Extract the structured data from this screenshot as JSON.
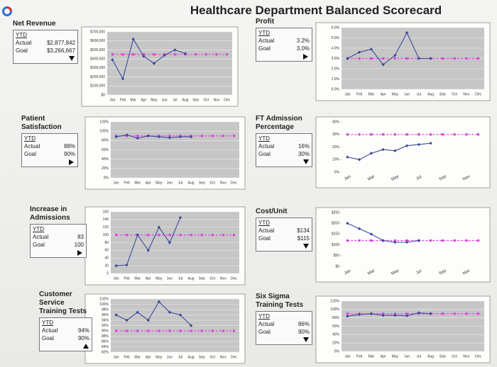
{
  "title": "Healthcare Department Balanced Scorecard",
  "chart_data": [
    {
      "type": "line",
      "title": "Net Revenue",
      "ytd": {
        "header": "YTD",
        "labels": [
          "Actual",
          "Goal"
        ],
        "values": [
          2877842,
          3266667
        ],
        "value_labels": [
          "$2,877,842",
          "$3,266,667"
        ]
      },
      "status": "down",
      "categories": [
        "Jan",
        "Feb",
        "Mar",
        "Apr",
        "May",
        "Jun",
        "Jul",
        "Aug",
        "Sep",
        "Oct",
        "Nov",
        "Dec"
      ],
      "series": [
        {
          "color": "#3a4a9a",
          "values": [
            390000,
            180000,
            620000,
            430000,
            350000,
            440000,
            500000,
            460000,
            null,
            null,
            null,
            null
          ]
        },
        {
          "color": "#e040e0",
          "values": [
            450000,
            450000,
            450000,
            450000,
            450000,
            450000,
            450000,
            450000,
            450000,
            450000,
            450000,
            450000
          ]
        }
      ],
      "ylim": [
        0,
        700000
      ],
      "yticks": [
        {
          "value": 0,
          "label": "$0"
        },
        {
          "value": 100000,
          "label": "$100,000"
        },
        {
          "value": 200000,
          "label": "$200,000"
        },
        {
          "value": 300000,
          "label": "$300,000"
        },
        {
          "value": 400000,
          "label": "$400,000"
        },
        {
          "value": 500000,
          "label": "$500,000"
        },
        {
          "value": 600000,
          "label": "$600,000"
        },
        {
          "value": 700000,
          "label": "$700,000"
        }
      ],
      "grid": true
    },
    {
      "type": "line",
      "title": "Profit",
      "ytd": {
        "header": "YTD",
        "labels": [
          "Actual",
          "Goal"
        ],
        "values": [
          3.2,
          3.0
        ],
        "value_labels": [
          "3.2%",
          "3.0%"
        ]
      },
      "status": "right",
      "categories": [
        "Jan",
        "Feb",
        "Mar",
        "Apr",
        "May",
        "Jun",
        "Jul",
        "Aug",
        "Sep",
        "Oct",
        "Nov",
        "Dec"
      ],
      "series": [
        {
          "color": "#3a4a9a",
          "values": [
            3.0,
            3.6,
            3.9,
            2.4,
            3.3,
            5.5,
            3.0,
            3.0,
            null,
            null,
            null,
            null
          ]
        },
        {
          "color": "#e040e0",
          "values": [
            3.0,
            3.0,
            3.0,
            3.0,
            3.0,
            3.0,
            3.0,
            3.0,
            3.0,
            3.0,
            3.0,
            3.0
          ]
        }
      ],
      "ylim": [
        0,
        6
      ],
      "yticks": [
        {
          "value": 0,
          "label": "0.0%"
        },
        {
          "value": 1,
          "label": "1.0%"
        },
        {
          "value": 2,
          "label": "2.0%"
        },
        {
          "value": 3,
          "label": "3.0%"
        },
        {
          "value": 4,
          "label": "4.0%"
        },
        {
          "value": 5,
          "label": "5.0%"
        },
        {
          "value": 6,
          "label": "6.0%"
        }
      ],
      "grid": true
    },
    {
      "type": "line",
      "title": "Patient Satisfaction",
      "ytd": {
        "header": "YTD",
        "labels": [
          "Actual",
          "Goal"
        ],
        "values": [
          88,
          90
        ],
        "value_labels": [
          "88%",
          "90%"
        ]
      },
      "status": "right",
      "categories": [
        "Jan",
        "Feb",
        "Mar",
        "Apr",
        "May",
        "Jun",
        "Jul",
        "Aug",
        "Sep",
        "Oct",
        "Nov",
        "Dec"
      ],
      "series": [
        {
          "color": "#3a4a9a",
          "values": [
            88,
            92,
            85,
            90,
            88,
            86,
            88,
            88,
            null,
            null,
            null,
            null
          ]
        },
        {
          "color": "#e040e0",
          "values": [
            90,
            90,
            90,
            90,
            90,
            90,
            90,
            90,
            90,
            90,
            90,
            90
          ]
        }
      ],
      "ylim": [
        0,
        120
      ],
      "yticks": [
        {
          "value": 0,
          "label": "0%"
        },
        {
          "value": 20,
          "label": "20%"
        },
        {
          "value": 40,
          "label": "40%"
        },
        {
          "value": 60,
          "label": "60%"
        },
        {
          "value": 80,
          "label": "80%"
        },
        {
          "value": 100,
          "label": "100%"
        },
        {
          "value": 120,
          "label": "120%"
        }
      ],
      "grid": true
    },
    {
      "type": "line",
      "title": "FT Admission Percentage",
      "ytd": {
        "header": "YTD",
        "labels": [
          "Actual",
          "Goal"
        ],
        "values": [
          16,
          30
        ],
        "value_labels": [
          "16%",
          "30%"
        ]
      },
      "status": "down",
      "categories": [
        "Jan",
        null,
        "Mar",
        null,
        "May",
        null,
        "Jul",
        null,
        "Sep",
        null,
        "Nov",
        null
      ],
      "series": [
        {
          "color": "#3a4a9a",
          "values": [
            12,
            10,
            15,
            18,
            17,
            21,
            22,
            23,
            null,
            null,
            null,
            null
          ]
        },
        {
          "color": "#e040e0",
          "values": [
            30,
            30,
            30,
            30,
            30,
            30,
            30,
            30,
            30,
            30,
            30,
            30
          ]
        }
      ],
      "ylim": [
        0,
        40
      ],
      "yticks": [
        {
          "value": 0,
          "label": "0%"
        },
        {
          "value": 10,
          "label": "10%"
        },
        {
          "value": 20,
          "label": "20%"
        },
        {
          "value": 30,
          "label": "30%"
        },
        {
          "value": 40,
          "label": "40%"
        }
      ],
      "grid": false
    },
    {
      "type": "line",
      "title": "Increase in Admissions",
      "ytd": {
        "header": "YTD",
        "labels": [
          "Actual",
          "Goal"
        ],
        "values": [
          83,
          100
        ]
      },
      "status": "right",
      "categories": [
        "Jan",
        "Feb",
        "Mar",
        "Apr",
        "May",
        "Jun",
        "Jul",
        "Aug",
        "Sep",
        "Oct",
        "Nov",
        "Dec"
      ],
      "series": [
        {
          "color": "#3a4a9a",
          "values": [
            20,
            22,
            100,
            60,
            120,
            80,
            145,
            null,
            null,
            null,
            null,
            null
          ]
        },
        {
          "color": "#e040e0",
          "values": [
            100,
            100,
            100,
            100,
            100,
            100,
            100,
            100,
            100,
            100,
            100,
            100
          ]
        }
      ],
      "ylim": [
        0,
        160
      ],
      "yticks": [
        0,
        20,
        40,
        60,
        80,
        100,
        120,
        140,
        160
      ],
      "grid": true
    },
    {
      "type": "line",
      "title": "Cost/Unit",
      "ytd": {
        "header": "YTD",
        "labels": [
          "Actual",
          "Goal"
        ],
        "values": [
          134,
          115
        ],
        "value_labels": [
          "$134",
          "$115"
        ]
      },
      "status": "down",
      "categories": [
        "Jan",
        null,
        "Mar",
        null,
        "May",
        null,
        "Jul",
        null,
        "Sep",
        null,
        "Nov",
        null
      ],
      "series": [
        {
          "color": "#3a4a9a",
          "values": [
            200,
            175,
            150,
            120,
            112,
            112,
            120,
            null,
            null,
            null,
            null,
            null
          ]
        },
        {
          "color": "#e040e0",
          "values": [
            120,
            120,
            120,
            120,
            120,
            120,
            120,
            120,
            120,
            120,
            120,
            120
          ]
        }
      ],
      "ylim": [
        0,
        250
      ],
      "yticks": [
        {
          "value": 0,
          "label": "$0"
        },
        {
          "value": 50,
          "label": "$50"
        },
        {
          "value": 100,
          "label": "$100"
        },
        {
          "value": 150,
          "label": "$150"
        },
        {
          "value": 200,
          "label": "$200"
        },
        {
          "value": 250,
          "label": "$250"
        }
      ],
      "grid": false
    },
    {
      "type": "line",
      "title": "Customer Service Training Tests",
      "ytd": {
        "header": "YTD",
        "labels": [
          "Actual",
          "Goal"
        ],
        "values": [
          94,
          90
        ],
        "value_labels": [
          "94%",
          "90%"
        ]
      },
      "status": "up",
      "categories": [
        "Jan",
        "Feb",
        "Mar",
        "Apr",
        "May",
        "Jun",
        "Jul",
        "Aug",
        "Sep",
        "Oct",
        "Nov",
        "Dec"
      ],
      "series": [
        {
          "color": "#3a4a9a",
          "values": [
            96,
            94,
            97,
            94,
            101,
            97,
            96,
            92,
            null,
            null,
            null,
            null
          ]
        },
        {
          "color": "#e040e0",
          "values": [
            90,
            90,
            90,
            90,
            90,
            90,
            90,
            90,
            90,
            90,
            90,
            90
          ]
        }
      ],
      "ylim": [
        82,
        102
      ],
      "yticks": [
        {
          "value": 82,
          "label": "82%"
        },
        {
          "value": 84,
          "label": "84%"
        },
        {
          "value": 86,
          "label": "86%"
        },
        {
          "value": 88,
          "label": "88%"
        },
        {
          "value": 90,
          "label": "90%"
        },
        {
          "value": 92,
          "label": "92%"
        },
        {
          "value": 94,
          "label": "94%"
        },
        {
          "value": 96,
          "label": "96%"
        },
        {
          "value": 98,
          "label": "98%"
        },
        {
          "value": 100,
          "label": "100%"
        },
        {
          "value": 102,
          "label": "102%"
        }
      ],
      "grid": true
    },
    {
      "type": "line",
      "title": "Six Sigma Training Tests",
      "ytd": {
        "header": "YTD",
        "labels": [
          "Actual",
          "Goal"
        ],
        "values": [
          86,
          90
        ],
        "value_labels": [
          "86%",
          "90%"
        ]
      },
      "status": "down",
      "categories": [
        "Jan",
        "Feb",
        "Mar",
        "Apr",
        "May",
        "Jun",
        "Jul",
        "Aug",
        "Sep",
        "Oct",
        "Nov",
        "Dec"
      ],
      "series": [
        {
          "color": "#3a4a9a",
          "values": [
            84,
            88,
            90,
            86,
            86,
            85,
            92,
            90,
            null,
            null,
            null,
            null
          ]
        },
        {
          "color": "#e040e0",
          "values": [
            90,
            90,
            90,
            90,
            90,
            90,
            90,
            90,
            90,
            90,
            90,
            90
          ]
        }
      ],
      "ylim": [
        0,
        120
      ],
      "yticks": [
        {
          "value": 0,
          "label": "0%"
        },
        {
          "value": 20,
          "label": "20%"
        },
        {
          "value": 40,
          "label": "40%"
        },
        {
          "value": 60,
          "label": "60%"
        },
        {
          "value": 80,
          "label": "80%"
        },
        {
          "value": 100,
          "label": "100%"
        },
        {
          "value": 120,
          "label": "120%"
        }
      ],
      "grid": true
    }
  ]
}
